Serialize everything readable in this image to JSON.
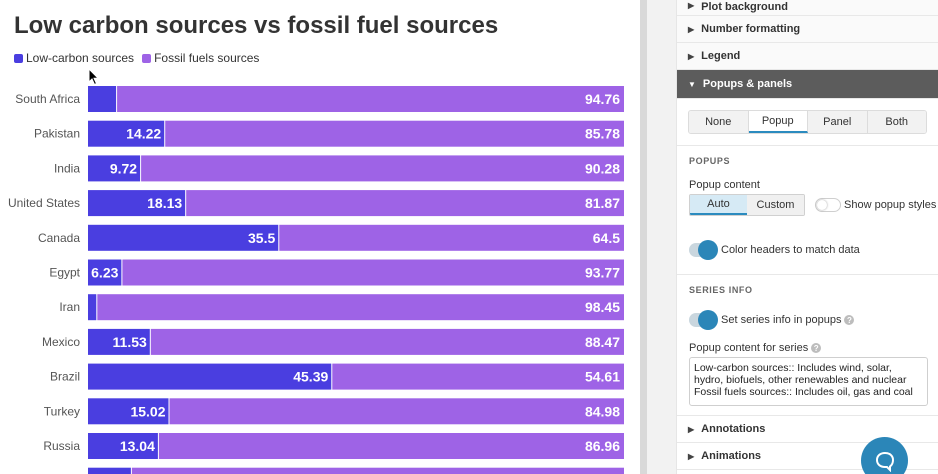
{
  "chart_data": {
    "type": "bar",
    "stacked": true,
    "orientation": "horizontal",
    "title": "Low carbon sources vs fossil fuel sources",
    "categories": [
      "South Africa",
      "Pakistan",
      "India",
      "United States",
      "Canada",
      "Egypt",
      "Iran",
      "Mexico",
      "Brazil",
      "Turkey",
      "Russia",
      ""
    ],
    "series": [
      {
        "name": "Low-carbon sources",
        "color": "#4a3ee0",
        "values": [
          5.24,
          14.22,
          9.72,
          18.13,
          35.5,
          6.23,
          1.55,
          11.53,
          45.39,
          15.02,
          13.04,
          8.0
        ]
      },
      {
        "name": "Fossil fuels sources",
        "color": "#9e63e6",
        "values": [
          94.76,
          85.78,
          90.28,
          81.87,
          64.5,
          93.77,
          98.45,
          88.47,
          54.61,
          84.98,
          86.96,
          92.0
        ]
      }
    ],
    "data_labels": {
      "low": [
        "",
        "14.22",
        "9.72",
        "18.13",
        "35.5",
        "6.23",
        "",
        "11.53",
        "45.39",
        "15.02",
        "13.04",
        ""
      ],
      "fossil": [
        "94.76",
        "85.78",
        "90.28",
        "81.87",
        "64.5",
        "93.77",
        "98.45",
        "88.47",
        "54.61",
        "84.98",
        "86.96",
        ""
      ]
    },
    "xlim": [
      0,
      100
    ],
    "legend_position": "top-left"
  },
  "panel": {
    "sections_top": [
      {
        "label": "Plot background"
      },
      {
        "label": "Number formatting"
      },
      {
        "label": "Legend"
      }
    ],
    "active_section": "Popups & panels",
    "display_modes": [
      "None",
      "Popup",
      "Panel",
      "Both"
    ],
    "display_mode_selected": "Popup",
    "popups_heading": "POPUPS",
    "popup_content_label": "Popup content",
    "popup_content_options": [
      "Auto",
      "Custom"
    ],
    "popup_content_selected": "Auto",
    "show_popup_styles_label": "Show popup styles",
    "show_popup_styles_on": false,
    "color_headers_label": "Color headers to match data",
    "color_headers_on": true,
    "series_info_heading": "SERIES INFO",
    "set_series_info_label": "Set series info in popups",
    "set_series_info_on": true,
    "popup_content_series_label": "Popup content for series",
    "popup_content_series_value": "Low-carbon sources:: Includes wind, solar, hydro, biofuels, other renewables and nuclear\nFossil fuels sources:: Includes oil, gas and coal",
    "sections_bottom": [
      {
        "label": "Annotations"
      },
      {
        "label": "Animations"
      }
    ]
  },
  "colors": {
    "accent": "#2b86b8",
    "active_section_bg": "#5c5c5c"
  },
  "icons": {
    "caret_right": "caret-right-icon",
    "caret_down": "caret-down-icon",
    "help": "help-icon",
    "chat": "chat-bubble-icon",
    "cursor": "mouse-pointer-icon"
  }
}
